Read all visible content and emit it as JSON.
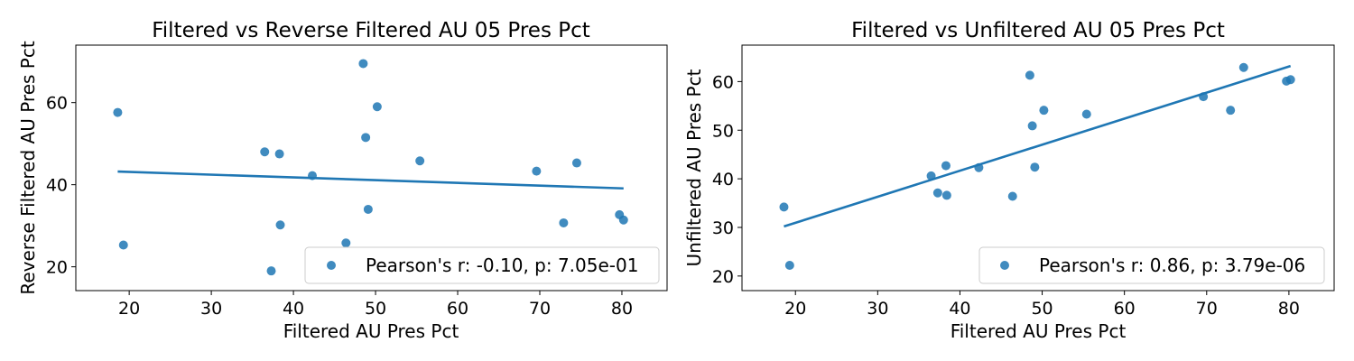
{
  "chart_data": [
    {
      "type": "scatter",
      "title": "Filtered vs Reverse Filtered AU 05 Pres Pct",
      "xlabel": "Filtered AU Pres Pct",
      "ylabel": "Reverse Filtered AU Pres Pct",
      "xlim": [
        13.5,
        85.5
      ],
      "ylim": [
        14.2,
        74.0
      ],
      "xticks": [
        20,
        30,
        40,
        50,
        60,
        70,
        80
      ],
      "yticks": [
        20,
        40,
        60
      ],
      "color": "#1f77b4",
      "legend_label": "Pearson's r: -0.10, p: 7.05e-01",
      "legend_position": "lower-right",
      "points": [
        {
          "x": 18.6,
          "y": 57.6
        },
        {
          "x": 19.3,
          "y": 25.3
        },
        {
          "x": 36.5,
          "y": 48.0
        },
        {
          "x": 37.3,
          "y": 19.0
        },
        {
          "x": 38.3,
          "y": 47.5
        },
        {
          "x": 38.4,
          "y": 30.2
        },
        {
          "x": 42.3,
          "y": 42.2
        },
        {
          "x": 46.4,
          "y": 25.8
        },
        {
          "x": 48.5,
          "y": 69.5
        },
        {
          "x": 48.8,
          "y": 51.5
        },
        {
          "x": 49.1,
          "y": 34.0
        },
        {
          "x": 50.2,
          "y": 59.0
        },
        {
          "x": 55.4,
          "y": 45.8
        },
        {
          "x": 69.6,
          "y": 43.3
        },
        {
          "x": 72.9,
          "y": 30.7
        },
        {
          "x": 74.5,
          "y": 45.3
        },
        {
          "x": 79.7,
          "y": 32.7
        },
        {
          "x": 80.2,
          "y": 31.4
        }
      ],
      "fit_line": {
        "x": [
          18.6,
          80.2
        ],
        "y": [
          43.2,
          39.1
        ]
      }
    },
    {
      "type": "scatter",
      "title": "Filtered vs Unfiltered AU 05 Pres Pct",
      "xlabel": "Filtered AU Pres Pct",
      "ylabel": "Unfiltered AU Pres Pct",
      "xlim": [
        13.5,
        85.5
      ],
      "ylim": [
        17.0,
        67.5
      ],
      "xticks": [
        20,
        30,
        40,
        50,
        60,
        70,
        80
      ],
      "yticks": [
        20,
        30,
        40,
        50,
        60
      ],
      "color": "#1f77b4",
      "legend_label": "Pearson's r: 0.86, p: 3.79e-06",
      "legend_position": "lower-right",
      "points": [
        {
          "x": 18.6,
          "y": 34.2
        },
        {
          "x": 19.3,
          "y": 22.2
        },
        {
          "x": 36.5,
          "y": 40.6
        },
        {
          "x": 37.3,
          "y": 37.1
        },
        {
          "x": 38.3,
          "y": 42.7
        },
        {
          "x": 38.4,
          "y": 36.6
        },
        {
          "x": 42.3,
          "y": 42.3
        },
        {
          "x": 46.4,
          "y": 36.4
        },
        {
          "x": 48.5,
          "y": 61.3
        },
        {
          "x": 48.8,
          "y": 50.9
        },
        {
          "x": 49.1,
          "y": 42.4
        },
        {
          "x": 50.2,
          "y": 54.1
        },
        {
          "x": 55.4,
          "y": 53.3
        },
        {
          "x": 69.6,
          "y": 56.9
        },
        {
          "x": 72.9,
          "y": 54.1
        },
        {
          "x": 74.5,
          "y": 62.9
        },
        {
          "x": 79.7,
          "y": 60.1
        },
        {
          "x": 80.2,
          "y": 60.4
        }
      ],
      "fit_line": {
        "x": [
          18.6,
          80.2
        ],
        "y": [
          30.2,
          63.2
        ]
      }
    }
  ]
}
